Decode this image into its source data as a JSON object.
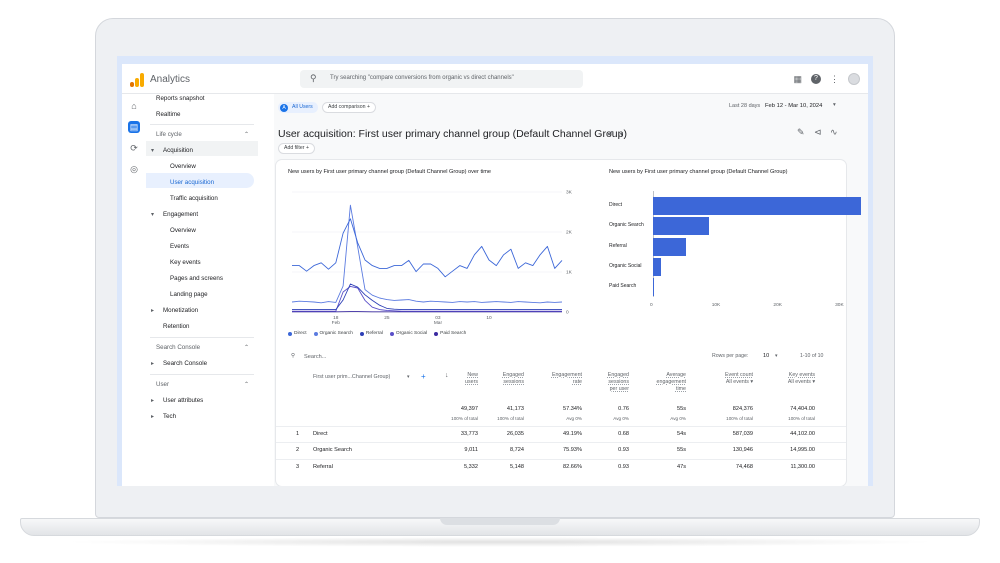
{
  "app": {
    "title": "Analytics",
    "search_placeholder": "Try searching \"compare conversions from organic vs direct channels\"",
    "icons": [
      "apps-grid-icon",
      "help-icon",
      "more-vert-icon",
      "account-avatar"
    ]
  },
  "colors": {
    "accent": "#1a73e8",
    "logo_orange": "#f9ab00",
    "logo_dark": "#e37400",
    "bar": "#3c67d8"
  },
  "nav": {
    "reports_snapshot": "Reports snapshot",
    "realtime": "Realtime",
    "life_cycle": "Life cycle",
    "acquisition": "Acquisition",
    "overview": "Overview",
    "user_acquisition": "User acquisition",
    "traffic_acquisition": "Traffic acquisition",
    "engagement": "Engagement",
    "eng_overview": "Overview",
    "events": "Events",
    "key_events": "Key events",
    "pages_and_screens": "Pages and screens",
    "landing_page": "Landing page",
    "monetization": "Monetization",
    "retention": "Retention",
    "search_console_section": "Search Console",
    "search_console": "Search Console",
    "user_section": "User",
    "user_attributes": "User attributes",
    "tech": "Tech"
  },
  "toolbar": {
    "segment": "All Users",
    "segment_badge": "A",
    "add_comparison": "Add comparison",
    "date_label": "Last 28 days",
    "date_range": "Feb 12 - Mar 10, 2024",
    "add_filter": "Add filter"
  },
  "page_title": "User acquisition: First user primary channel group (Default Channel Group)",
  "chart_data": [
    {
      "type": "line",
      "title": "New users by First user primary channel group (Default Channel Group) over time",
      "x_ticks": [
        "18",
        "25",
        "03",
        "10"
      ],
      "x_tick_sub": [
        "Feb",
        "",
        "Mar",
        ""
      ],
      "y_ticks": [
        "3K",
        "2K",
        "1K",
        "0"
      ],
      "ylim": [
        0,
        3000
      ],
      "series": [
        {
          "name": "Direct",
          "color": "#3c67d8",
          "values": [
            1160,
            1160,
            1020,
            1160,
            1230,
            1070,
            1230,
            1970,
            2330,
            1730,
            1300,
            1160,
            1090,
            1090,
            1160,
            1160,
            1290,
            1010,
            1200,
            1200,
            1090,
            880,
            1020,
            1160,
            1090,
            1430,
            1640,
            1300,
            1160,
            1430,
            1570,
            1090,
            1230,
            1160,
            1430,
            1640,
            1090,
            1290
          ]
        },
        {
          "name": "Organic Search",
          "color": "#5b7be0",
          "values": [
            250,
            270,
            260,
            250,
            230,
            260,
            240,
            650,
            2670,
            1630,
            560,
            420,
            350,
            310,
            290,
            300,
            310,
            270,
            250,
            270,
            260,
            250,
            240,
            260,
            250,
            260,
            240,
            250,
            260,
            250,
            240,
            260,
            250,
            240,
            230,
            250,
            240,
            250
          ]
        },
        {
          "name": "Referral",
          "color": "#2d3fb6",
          "values": [
            60,
            60,
            60,
            60,
            60,
            60,
            60,
            300,
            700,
            620,
            430,
            290,
            170,
            90,
            70,
            60,
            60,
            60,
            60,
            60,
            60,
            60,
            60,
            60,
            60,
            60,
            60,
            60,
            60,
            60,
            60,
            60,
            60,
            60,
            60,
            60,
            60,
            60
          ]
        },
        {
          "name": "Organic Social",
          "color": "#5a4fc8",
          "values": [
            20,
            20,
            20,
            20,
            20,
            20,
            20,
            500,
            640,
            600,
            290,
            120,
            60,
            40,
            30,
            20,
            20,
            20,
            20,
            20,
            20,
            20,
            20,
            20,
            20,
            20,
            20,
            20,
            20,
            20,
            20,
            20,
            20,
            20,
            20,
            20,
            20,
            20
          ]
        },
        {
          "name": "Paid Search",
          "color": "#3b2aa0",
          "values": [
            5,
            5,
            5,
            5,
            5,
            5,
            5,
            8,
            10,
            10,
            8,
            6,
            5,
            5,
            5,
            5,
            5,
            5,
            5,
            5,
            5,
            5,
            5,
            5,
            5,
            5,
            5,
            5,
            5,
            5,
            5,
            5,
            5,
            5,
            5,
            5,
            5,
            5
          ]
        }
      ]
    },
    {
      "type": "bar",
      "orientation": "horizontal",
      "title": "New users by First user primary channel group (Default Channel Group)",
      "categories": [
        "Direct",
        "Organic Search",
        "Referral",
        "Organic Social",
        "Paid Search"
      ],
      "values": [
        33773,
        9011,
        5332,
        1300,
        200
      ],
      "x_ticks": [
        "0",
        "10K",
        "20K",
        "30K"
      ],
      "xlim": [
        0,
        35000
      ]
    }
  ],
  "table": {
    "search_placeholder": "Search...",
    "rows_per_page_label": "Rows per page:",
    "rows_per_page": "10",
    "pagination": "1-10 of 10",
    "dimension_header": "First user prim...Channel Group)",
    "columns": [
      {
        "label": [
          "New",
          "users"
        ],
        "total": "49,397",
        "sub": "100% of total"
      },
      {
        "label": [
          "Engaged",
          "sessions"
        ],
        "total": "41,173",
        "sub": "100% of total"
      },
      {
        "label": [
          "Engagement",
          "rate"
        ],
        "total": "57.34%",
        "sub": "Avg 0%"
      },
      {
        "label": [
          "Engaged",
          "sessions",
          "per user"
        ],
        "total": "0.76",
        "sub": "Avg 0%"
      },
      {
        "label": [
          "Average",
          "engagement",
          "time"
        ],
        "total": "55s",
        "sub": "Avg 0%"
      },
      {
        "label": [
          "Event count",
          "All events ▾"
        ],
        "total": "824,376",
        "sub": "100% of total"
      },
      {
        "label": [
          "Key events",
          "All events ▾"
        ],
        "total": "74,404.00",
        "sub": "100% of total"
      }
    ],
    "rows": [
      {
        "rank": "1",
        "name": "Direct",
        "cells": [
          "33,773",
          "26,035",
          "49.19%",
          "0.68",
          "54s",
          "587,039",
          "44,102.00"
        ]
      },
      {
        "rank": "2",
        "name": "Organic Search",
        "cells": [
          "9,011",
          "8,724",
          "75.93%",
          "0.93",
          "55s",
          "130,946",
          "14,995.00"
        ]
      },
      {
        "rank": "3",
        "name": "Referral",
        "cells": [
          "5,332",
          "5,148",
          "82.66%",
          "0.93",
          "47s",
          "74,468",
          "11,300.00"
        ]
      }
    ]
  }
}
